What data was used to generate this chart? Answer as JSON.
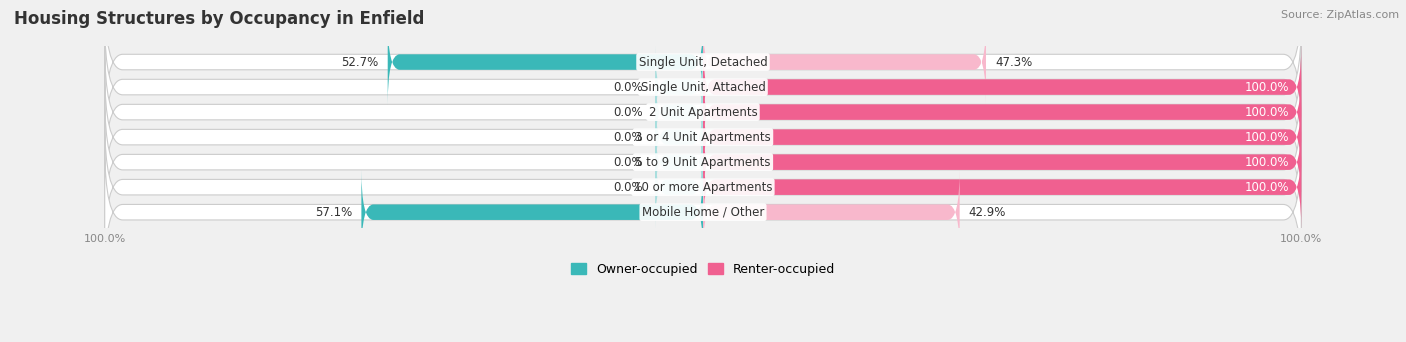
{
  "title": "Housing Structures by Occupancy in Enfield",
  "source": "Source: ZipAtlas.com",
  "categories": [
    "Single Unit, Detached",
    "Single Unit, Attached",
    "2 Unit Apartments",
    "3 or 4 Unit Apartments",
    "5 to 9 Unit Apartments",
    "10 or more Apartments",
    "Mobile Home / Other"
  ],
  "owner_pct": [
    52.7,
    0.0,
    0.0,
    0.0,
    0.0,
    0.0,
    57.1
  ],
  "renter_pct": [
    47.3,
    100.0,
    100.0,
    100.0,
    100.0,
    100.0,
    42.9
  ],
  "owner_color": "#3ab8b8",
  "owner_stub_color": "#a8dede",
  "renter_color": "#f06090",
  "renter_light_color": "#f8b8cc",
  "owner_label": "Owner-occupied",
  "renter_label": "Renter-occupied",
  "bg_color": "#f0f0f0",
  "bar_height": 0.62,
  "title_fontsize": 12,
  "label_fontsize": 8.5,
  "tick_fontsize": 8,
  "source_fontsize": 8,
  "bar_gap": 0.18
}
